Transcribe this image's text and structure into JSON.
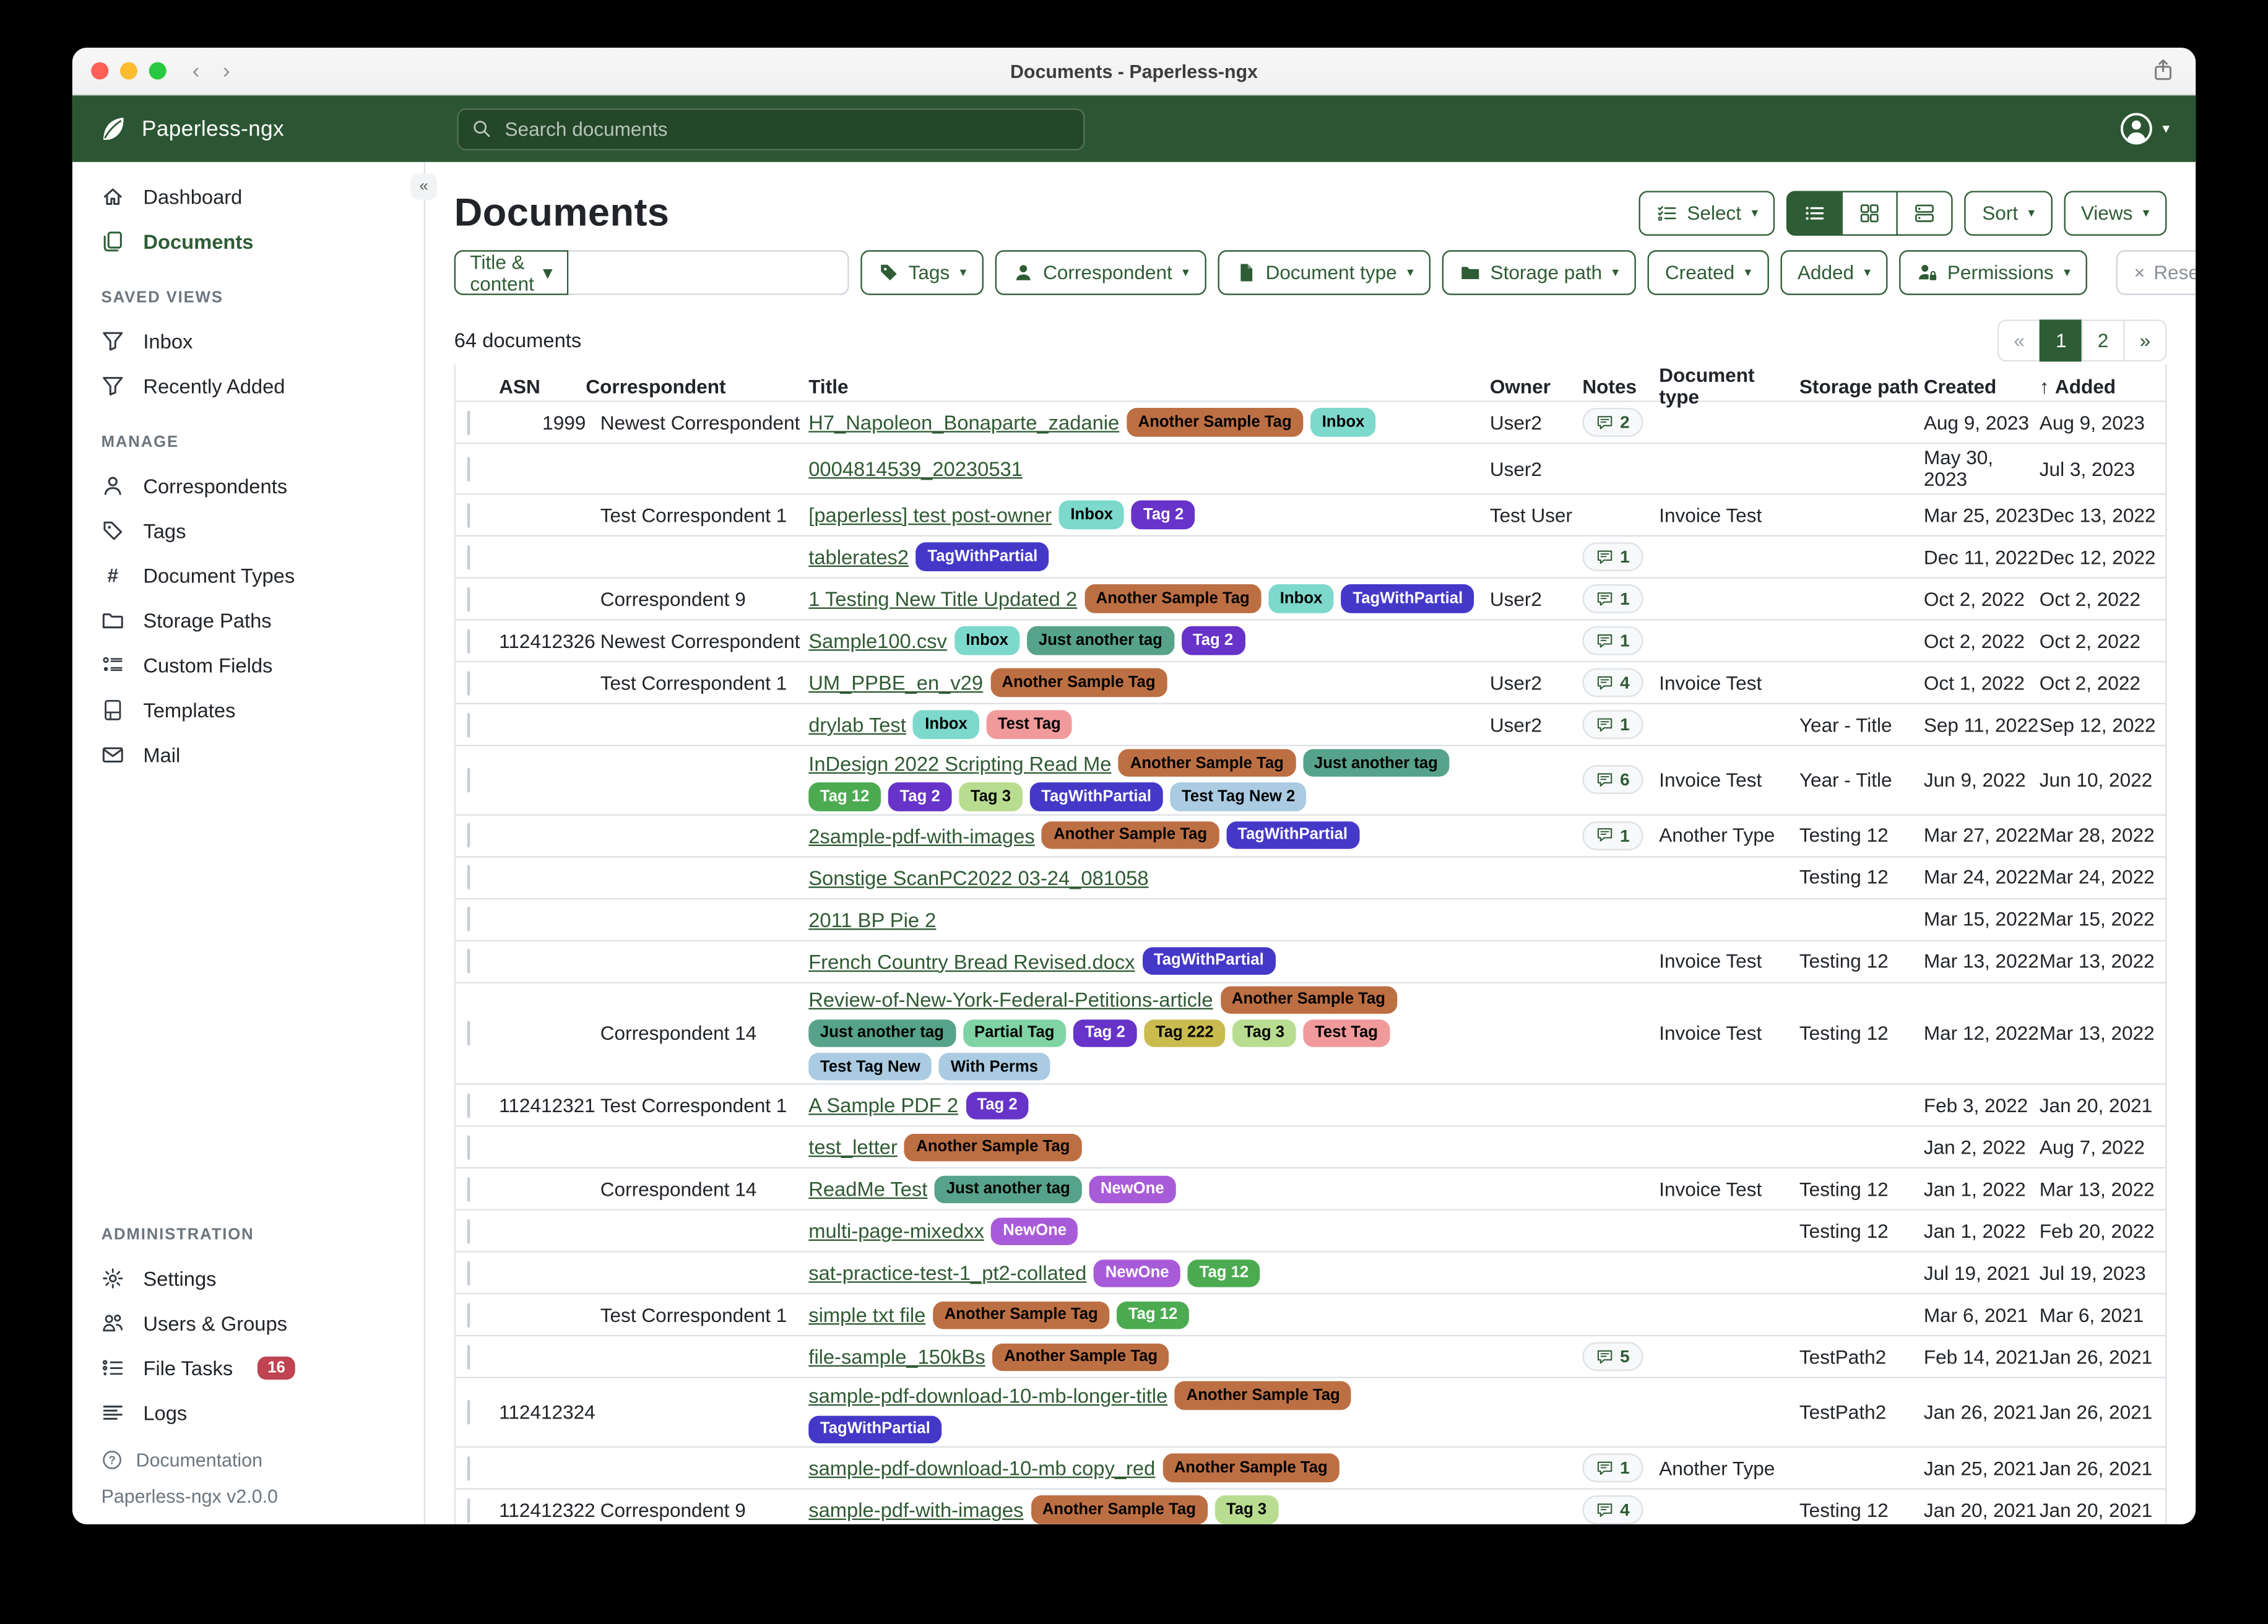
{
  "window": {
    "title": "Documents - Paperless-ngx"
  },
  "navbar": {
    "brand": "Paperless-ngx",
    "search_placeholder": "Search documents",
    "search_value": ""
  },
  "theme": {
    "primary_green": "#2e5c35",
    "navbar_green": "#2c5633",
    "link_green": "#2f5a33",
    "badge_red": "#bf4350"
  },
  "sidebar": {
    "top_items": [
      {
        "label": "Dashboard",
        "icon": "house-icon",
        "active": false
      },
      {
        "label": "Documents",
        "icon": "documents-icon",
        "active": true
      }
    ],
    "sections": [
      {
        "label": "SAVED VIEWS",
        "items": [
          {
            "label": "Inbox",
            "icon": "funnel-icon"
          },
          {
            "label": "Recently Added",
            "icon": "funnel-icon"
          }
        ]
      },
      {
        "label": "MANAGE",
        "items": [
          {
            "label": "Correspondents",
            "icon": "person-icon"
          },
          {
            "label": "Tags",
            "icon": "tags-icon"
          },
          {
            "label": "Document Types",
            "icon": "hash-icon"
          },
          {
            "label": "Storage Paths",
            "icon": "folder-icon"
          },
          {
            "label": "Custom Fields",
            "icon": "custom-fields-icon"
          },
          {
            "label": "Templates",
            "icon": "templates-icon"
          },
          {
            "label": "Mail",
            "icon": "envelope-icon"
          }
        ]
      },
      {
        "label": "ADMINISTRATION",
        "items": [
          {
            "label": "Settings",
            "icon": "gear-icon"
          },
          {
            "label": "Users & Groups",
            "icon": "people-icon"
          },
          {
            "label": "File Tasks",
            "icon": "list-check-icon",
            "badge": "16"
          },
          {
            "label": "Logs",
            "icon": "text-left-icon"
          }
        ]
      }
    ],
    "documentation_label": "Documentation",
    "version": "Paperless-ngx v2.0.0"
  },
  "page": {
    "title": "Documents",
    "count_text": "64 documents"
  },
  "toolbar": {
    "select_label": "Select",
    "sort_label": "Sort",
    "views_label": "Views",
    "view_modes": [
      {
        "icon": "list-view-icon",
        "active": true
      },
      {
        "icon": "grid-view-icon",
        "active": false
      },
      {
        "icon": "cards-view-icon",
        "active": false
      }
    ]
  },
  "filters": {
    "primary_label": "Title & content",
    "primary_value": "",
    "buttons": [
      {
        "label": "Tags",
        "icon": "tag-filled-icon"
      },
      {
        "label": "Correspondent",
        "icon": "person-filled-icon"
      },
      {
        "label": "Document type",
        "icon": "file-filled-icon"
      },
      {
        "label": "Storage path",
        "icon": "folder-filled-icon"
      },
      {
        "label": "Created",
        "icon": null
      },
      {
        "label": "Added",
        "icon": null
      },
      {
        "label": "Permissions",
        "icon": "person-lock-icon"
      }
    ],
    "reset_label": "Reset filters"
  },
  "pagination": {
    "prev": "«",
    "pages": [
      "1",
      "2"
    ],
    "next": "»",
    "active_page": "1"
  },
  "tag_colors": {
    "Another Sample Tag": {
      "bg": "#bd6f44",
      "fg": "#000000"
    },
    "Inbox": {
      "bg": "#7cd9cc",
      "fg": "#000000"
    },
    "Tag 2": {
      "bg": "#6733c8",
      "fg": "#ffffff"
    },
    "TagWithPartial": {
      "bg": "#4438c9",
      "fg": "#ffffff"
    },
    "Just another tag": {
      "bg": "#56a28a",
      "fg": "#000000"
    },
    "Tag 12": {
      "bg": "#4cab51",
      "fg": "#ffffff"
    },
    "Tag 3": {
      "bg": "#b9dd90",
      "fg": "#000000"
    },
    "Test Tag": {
      "bg": "#f09a9c",
      "fg": "#000000"
    },
    "Test Tag New 2": {
      "bg": "#aacbe2",
      "fg": "#000000"
    },
    "Test Tag New": {
      "bg": "#aacbe2",
      "fg": "#000000"
    },
    "With Perms": {
      "bg": "#aacbe2",
      "fg": "#000000"
    },
    "Partial Tag": {
      "bg": "#80d3a4",
      "fg": "#000000"
    },
    "Tag 222": {
      "bg": "#c9bb4e",
      "fg": "#000000"
    },
    "NewOne": {
      "bg": "#a85bd8",
      "fg": "#ffffff"
    }
  },
  "table": {
    "columns": [
      "ASN",
      "Correspondent",
      "Title",
      "Owner",
      "Notes",
      "Document type",
      "Storage path",
      "Created",
      "Added"
    ],
    "sort_column": "Added",
    "sort_direction": "asc",
    "rows": [
      {
        "asn": "1999",
        "correspondent": "Newest Correspondent",
        "title": "H7_Napoleon_Bonaparte_zadanie",
        "tags": [
          "Another Sample Tag",
          "Inbox"
        ],
        "owner": "User2",
        "notes": 2,
        "document_type": "",
        "storage_path": "",
        "created": "Aug 9, 2023",
        "added": "Aug 9, 2023"
      },
      {
        "asn": "",
        "correspondent": "",
        "title": "0004814539_20230531",
        "tags": [],
        "owner": "User2",
        "notes": null,
        "document_type": "",
        "storage_path": "",
        "created": "May 30, 2023",
        "added": "Jul 3, 2023"
      },
      {
        "asn": "",
        "correspondent": "Test Correspondent 1",
        "title": "[paperless] test post-owner",
        "tags": [
          "Inbox",
          "Tag 2"
        ],
        "owner": "Test User",
        "notes": null,
        "document_type": "Invoice Test",
        "storage_path": "",
        "created": "Mar 25, 2023",
        "added": "Dec 13, 2022"
      },
      {
        "asn": "",
        "correspondent": "",
        "title": "tablerates2",
        "tags": [
          "TagWithPartial"
        ],
        "owner": "",
        "notes": 1,
        "document_type": "",
        "storage_path": "",
        "created": "Dec 11, 2022",
        "added": "Dec 12, 2022"
      },
      {
        "asn": "",
        "correspondent": "Correspondent 9",
        "title": "1 Testing New Title Updated 2",
        "tags": [
          "Another Sample Tag",
          "Inbox",
          "TagWithPartial"
        ],
        "owner": "User2",
        "notes": 1,
        "document_type": "",
        "storage_path": "",
        "created": "Oct 2, 2022",
        "added": "Oct 2, 2022"
      },
      {
        "asn": "112412326",
        "correspondent": "Newest Correspondent",
        "title": "Sample100.csv",
        "tags": [
          "Inbox",
          "Just another tag",
          "Tag 2"
        ],
        "owner": "",
        "notes": 1,
        "document_type": "",
        "storage_path": "",
        "created": "Oct 2, 2022",
        "added": "Oct 2, 2022"
      },
      {
        "asn": "",
        "correspondent": "Test Correspondent 1",
        "title": "UM_PPBE_en_v29",
        "tags": [
          "Another Sample Tag"
        ],
        "owner": "User2",
        "notes": 4,
        "document_type": "Invoice Test",
        "storage_path": "",
        "created": "Oct 1, 2022",
        "added": "Oct 2, 2022"
      },
      {
        "asn": "",
        "correspondent": "",
        "title": "drylab Test",
        "tags": [
          "Inbox",
          "Test Tag"
        ],
        "owner": "User2",
        "notes": 1,
        "document_type": "",
        "storage_path": "Year - Title",
        "created": "Sep 11, 2022",
        "added": "Sep 12, 2022"
      },
      {
        "asn": "",
        "correspondent": "",
        "title": "InDesign 2022 Scripting Read Me",
        "tags": [
          "Another Sample Tag",
          "Just another tag",
          "Tag 12",
          "Tag 2",
          "Tag 3",
          "TagWithPartial",
          "Test Tag New 2"
        ],
        "owner": "",
        "notes": 6,
        "document_type": "Invoice Test",
        "storage_path": "Year - Title",
        "created": "Jun 9, 2022",
        "added": "Jun 10, 2022"
      },
      {
        "asn": "",
        "correspondent": "",
        "title": "2sample-pdf-with-images",
        "tags": [
          "Another Sample Tag",
          "TagWithPartial"
        ],
        "owner": "",
        "notes": 1,
        "document_type": "Another Type",
        "storage_path": "Testing 12",
        "created": "Mar 27, 2022",
        "added": "Mar 28, 2022"
      },
      {
        "asn": "",
        "correspondent": "",
        "title": "Sonstige ScanPC2022 03-24_081058",
        "tags": [],
        "owner": "",
        "notes": null,
        "document_type": "",
        "storage_path": "Testing 12",
        "created": "Mar 24, 2022",
        "added": "Mar 24, 2022"
      },
      {
        "asn": "",
        "correspondent": "",
        "title": "2011 BP Pie 2",
        "tags": [],
        "owner": "",
        "notes": null,
        "document_type": "",
        "storage_path": "",
        "created": "Mar 15, 2022",
        "added": "Mar 15, 2022"
      },
      {
        "asn": "",
        "correspondent": "",
        "title": "French Country Bread Revised.docx",
        "tags": [
          "TagWithPartial"
        ],
        "owner": "",
        "notes": null,
        "document_type": "Invoice Test",
        "storage_path": "Testing 12",
        "created": "Mar 13, 2022",
        "added": "Mar 13, 2022"
      },
      {
        "asn": "",
        "correspondent": "Correspondent 14",
        "title": "Review-of-New-York-Federal-Petitions-article",
        "tags": [
          "Another Sample Tag",
          "Just another tag",
          "Partial Tag",
          "Tag 2",
          "Tag 222",
          "Tag 3",
          "Test Tag",
          "Test Tag New",
          "With Perms"
        ],
        "owner": "",
        "notes": null,
        "document_type": "Invoice Test",
        "storage_path": "Testing 12",
        "created": "Mar 12, 2022",
        "added": "Mar 13, 2022"
      },
      {
        "asn": "112412321",
        "correspondent": "Test Correspondent 1",
        "title": "A Sample PDF 2",
        "tags": [
          "Tag 2"
        ],
        "owner": "",
        "notes": null,
        "document_type": "",
        "storage_path": "",
        "created": "Feb 3, 2022",
        "added": "Jan 20, 2021"
      },
      {
        "asn": "",
        "correspondent": "",
        "title": "test_letter",
        "tags": [
          "Another Sample Tag"
        ],
        "owner": "",
        "notes": null,
        "document_type": "",
        "storage_path": "",
        "created": "Jan 2, 2022",
        "added": "Aug 7, 2022"
      },
      {
        "asn": "",
        "correspondent": "Correspondent 14",
        "title": "ReadMe Test",
        "tags": [
          "Just another tag",
          "NewOne"
        ],
        "owner": "",
        "notes": null,
        "document_type": "Invoice Test",
        "storage_path": "Testing 12",
        "created": "Jan 1, 2022",
        "added": "Mar 13, 2022"
      },
      {
        "asn": "",
        "correspondent": "",
        "title": "multi-page-mixedxx",
        "tags": [
          "NewOne"
        ],
        "owner": "",
        "notes": null,
        "document_type": "",
        "storage_path": "Testing 12",
        "created": "Jan 1, 2022",
        "added": "Feb 20, 2022"
      },
      {
        "asn": "",
        "correspondent": "",
        "title": "sat-practice-test-1_pt2-collated",
        "tags": [
          "NewOne",
          "Tag 12"
        ],
        "owner": "",
        "notes": null,
        "document_type": "",
        "storage_path": "",
        "created": "Jul 19, 2021",
        "added": "Jul 19, 2023"
      },
      {
        "asn": "",
        "correspondent": "Test Correspondent 1",
        "title": "simple txt file",
        "tags": [
          "Another Sample Tag",
          "Tag 12"
        ],
        "owner": "",
        "notes": null,
        "document_type": "",
        "storage_path": "",
        "created": "Mar 6, 2021",
        "added": "Mar 6, 2021"
      },
      {
        "asn": "",
        "correspondent": "",
        "title": "file-sample_150kBs",
        "tags": [
          "Another Sample Tag"
        ],
        "owner": "",
        "notes": 5,
        "document_type": "",
        "storage_path": "TestPath2",
        "created": "Feb 14, 2021",
        "added": "Jan 26, 2021"
      },
      {
        "asn": "112412324",
        "correspondent": "",
        "title": "sample-pdf-download-10-mb-longer-title",
        "tags": [
          "Another Sample Tag",
          "TagWithPartial"
        ],
        "owner": "",
        "notes": null,
        "document_type": "",
        "storage_path": "TestPath2",
        "created": "Jan 26, 2021",
        "added": "Jan 26, 2021"
      },
      {
        "asn": "",
        "correspondent": "",
        "title": "sample-pdf-download-10-mb copy_red",
        "tags": [
          "Another Sample Tag"
        ],
        "owner": "",
        "notes": 1,
        "document_type": "Another Type",
        "storage_path": "",
        "created": "Jan 25, 2021",
        "added": "Jan 26, 2021"
      },
      {
        "asn": "112412322",
        "correspondent": "Correspondent 9",
        "title": "sample-pdf-with-images",
        "tags": [
          "Another Sample Tag",
          "Tag 3"
        ],
        "owner": "",
        "notes": 4,
        "document_type": "",
        "storage_path": "Testing 12",
        "created": "Jan 20, 2021",
        "added": "Jan 20, 2021"
      }
    ]
  }
}
